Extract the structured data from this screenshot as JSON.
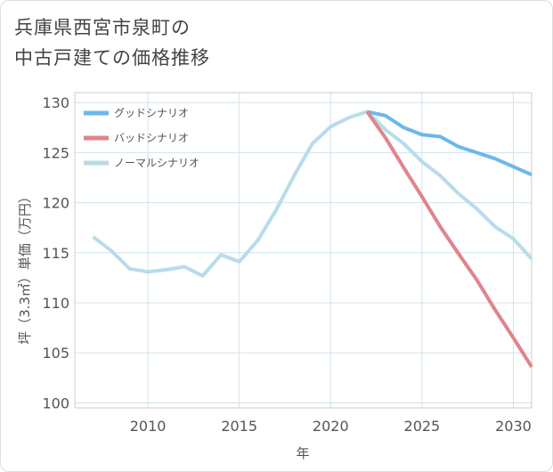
{
  "title": {
    "line1": "兵庫県西宮市泉町の",
    "line2": "中古戸建ての価格推移"
  },
  "chart_data": {
    "type": "line",
    "xlabel": "年",
    "ylabel": "坪（3.3㎡）単価（万円）",
    "xlim": [
      2006,
      2031
    ],
    "ylim": [
      99.5,
      131
    ],
    "x_ticks": [
      2010,
      2015,
      2020,
      2025,
      2030
    ],
    "y_ticks": [
      100,
      105,
      110,
      115,
      120,
      125,
      130
    ],
    "grid": true,
    "legend_position": "top-left",
    "series": [
      {
        "name": "グッドシナリオ",
        "color": "#6cb8ea",
        "x": [
          2022,
          2023,
          2024,
          2025,
          2026,
          2027,
          2028,
          2029,
          2030,
          2031
        ],
        "values": [
          129.1,
          128.7,
          127.5,
          126.8,
          126.6,
          125.6,
          125.0,
          124.4,
          123.6,
          122.8
        ]
      },
      {
        "name": "バッドシナリオ",
        "color": "#e0848c",
        "x": [
          2022,
          2023,
          2024,
          2025,
          2026,
          2027,
          2028,
          2029,
          2030,
          2031
        ],
        "values": [
          129.1,
          126.5,
          123.5,
          120.6,
          117.6,
          114.9,
          112.3,
          109.3,
          106.5,
          103.6
        ]
      },
      {
        "name": "ノーマルシナリオ",
        "color": "#b7dcea",
        "x": [
          2007,
          2008,
          2009,
          2010,
          2011,
          2012,
          2013,
          2014,
          2015,
          2016,
          2017,
          2018,
          2019,
          2020,
          2021,
          2022,
          2023,
          2024,
          2025,
          2026,
          2027,
          2028,
          2029,
          2030,
          2031
        ],
        "values": [
          116.6,
          115.2,
          113.4,
          113.1,
          113.3,
          113.6,
          112.7,
          114.8,
          114.1,
          116.2,
          119.2,
          122.7,
          125.9,
          127.6,
          128.5,
          129.1,
          127.3,
          125.9,
          124.1,
          122.7,
          120.9,
          119.4,
          117.6,
          116.4,
          114.4
        ]
      }
    ]
  }
}
